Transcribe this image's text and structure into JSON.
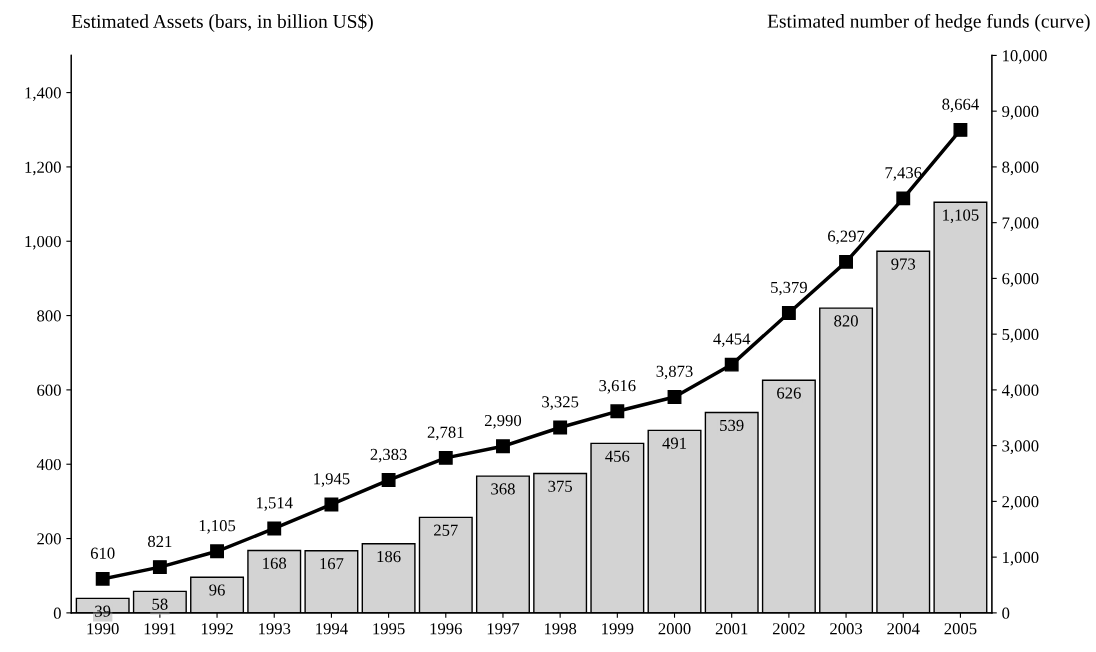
{
  "chart_data": {
    "type": "bar",
    "ylabel": "Estimated Assets (bars, in billion US$)",
    "y2label": "Estimated number of hedge funds (curve)",
    "categories": [
      "1990",
      "1991",
      "1992",
      "1993",
      "1994",
      "1995",
      "1996",
      "1997",
      "1998",
      "1999",
      "2000",
      "2001",
      "2002",
      "2003",
      "2004",
      "2005"
    ],
    "series": [
      {
        "color": "#d3d3d3",
        "values": [
          39,
          58,
          96,
          168,
          167,
          186,
          257,
          368,
          375,
          456,
          491,
          539,
          626,
          820,
          973,
          1105
        ],
        "value_labels": [
          "39",
          "58",
          "96",
          "168",
          "167",
          "186",
          "257",
          "368",
          "375",
          "456",
          "491",
          "539",
          "626",
          "820",
          "973",
          "1,105"
        ]
      },
      {
        "type": "line",
        "axis": "y2",
        "color": "#000000",
        "marker": "square",
        "line_style": "solid",
        "values": [
          610,
          821,
          1105,
          1514,
          1945,
          2383,
          2781,
          2990,
          3325,
          3616,
          3873,
          4454,
          5379,
          6297,
          7436,
          8664
        ],
        "value_labels": [
          "610",
          "821",
          "1,105",
          "1,514",
          "1,945",
          "2,383",
          "2,781",
          "2,990",
          "3,325",
          "3,616",
          "3,873",
          "4,454",
          "5,379",
          "6,297",
          "7,436",
          "8,664"
        ]
      }
    ],
    "ylim": [
      0,
      1500
    ],
    "yticks": [
      0,
      {
        "value": 200,
        "label": "200"
      },
      {
        "value": 400,
        "label": "400"
      },
      {
        "value": 600,
        "label": "600"
      },
      {
        "value": 800,
        "label": "800"
      },
      {
        "value": 1000,
        "label": "1,000"
      },
      {
        "value": 1200,
        "label": "1,200"
      },
      {
        "value": 1400,
        "label": "1,400"
      }
    ],
    "y2lim": [
      0,
      10000
    ],
    "y2ticks": [
      0,
      {
        "value": 1000,
        "label": "1,000"
      },
      {
        "value": 2000,
        "label": "2,000"
      },
      {
        "value": 3000,
        "label": "3,000"
      },
      {
        "value": 4000,
        "label": "4,000"
      },
      {
        "value": 5000,
        "label": "5,000"
      },
      {
        "value": 6000,
        "label": "6,000"
      },
      {
        "value": 7000,
        "label": "7,000"
      },
      {
        "value": 8000,
        "label": "8,000"
      },
      {
        "value": 9000,
        "label": "9,000"
      },
      {
        "value": 10000,
        "label": "10,000"
      }
    ],
    "grid": false
  }
}
